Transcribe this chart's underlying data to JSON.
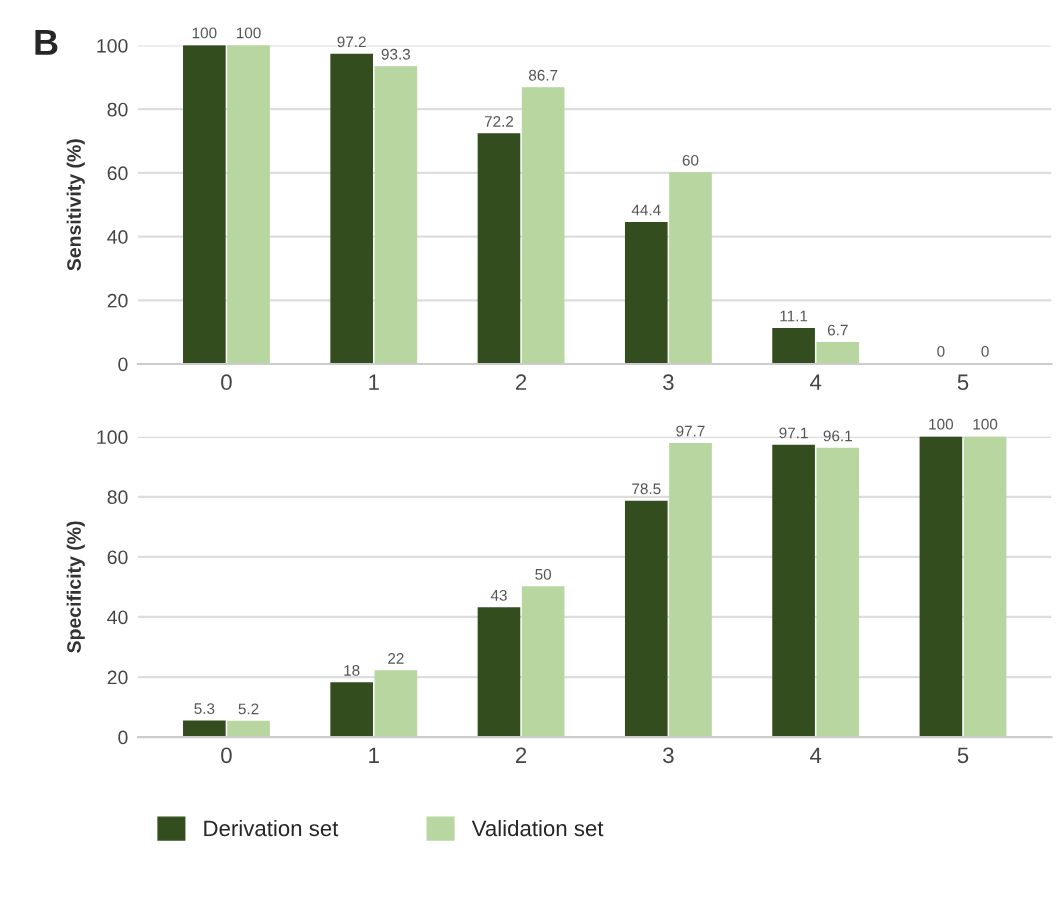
{
  "chart_data": [
    {
      "type": "bar",
      "ylabel": "Sensitivity (%)",
      "annotations": [
        "B"
      ],
      "categories": [
        "0",
        "1",
        "2",
        "3",
        "4",
        "5"
      ],
      "series": [
        {
          "color": "#344d1e",
          "values": [
            100,
            97.2,
            72.2,
            44.4,
            11.1,
            0
          ]
        },
        {
          "color": "#b8d6a0",
          "values": [
            100,
            93.3,
            86.7,
            60,
            6.7,
            0
          ]
        }
      ],
      "ylim": [
        0,
        100
      ],
      "yticks": [
        0,
        20,
        40,
        60,
        80,
        100
      ],
      "grid": "y",
      "data_labels": true
    },
    {
      "type": "bar",
      "ylabel": "Specificity (%)",
      "categories": [
        "0",
        "1",
        "2",
        "3",
        "4",
        "5"
      ],
      "series": [
        {
          "name": "Derivation set",
          "color": "#344d1e",
          "values": [
            5.3,
            18,
            43,
            78.5,
            97.1,
            100
          ]
        },
        {
          "name": "Validation set",
          "color": "#b8d6a0",
          "values": [
            5.2,
            22,
            50,
            97.7,
            96.1,
            100
          ]
        }
      ],
      "ylim": [
        0,
        100
      ],
      "yticks": [
        0,
        20,
        40,
        60,
        80,
        100
      ],
      "grid": "y",
      "data_labels": true,
      "legend": "bottom"
    }
  ]
}
